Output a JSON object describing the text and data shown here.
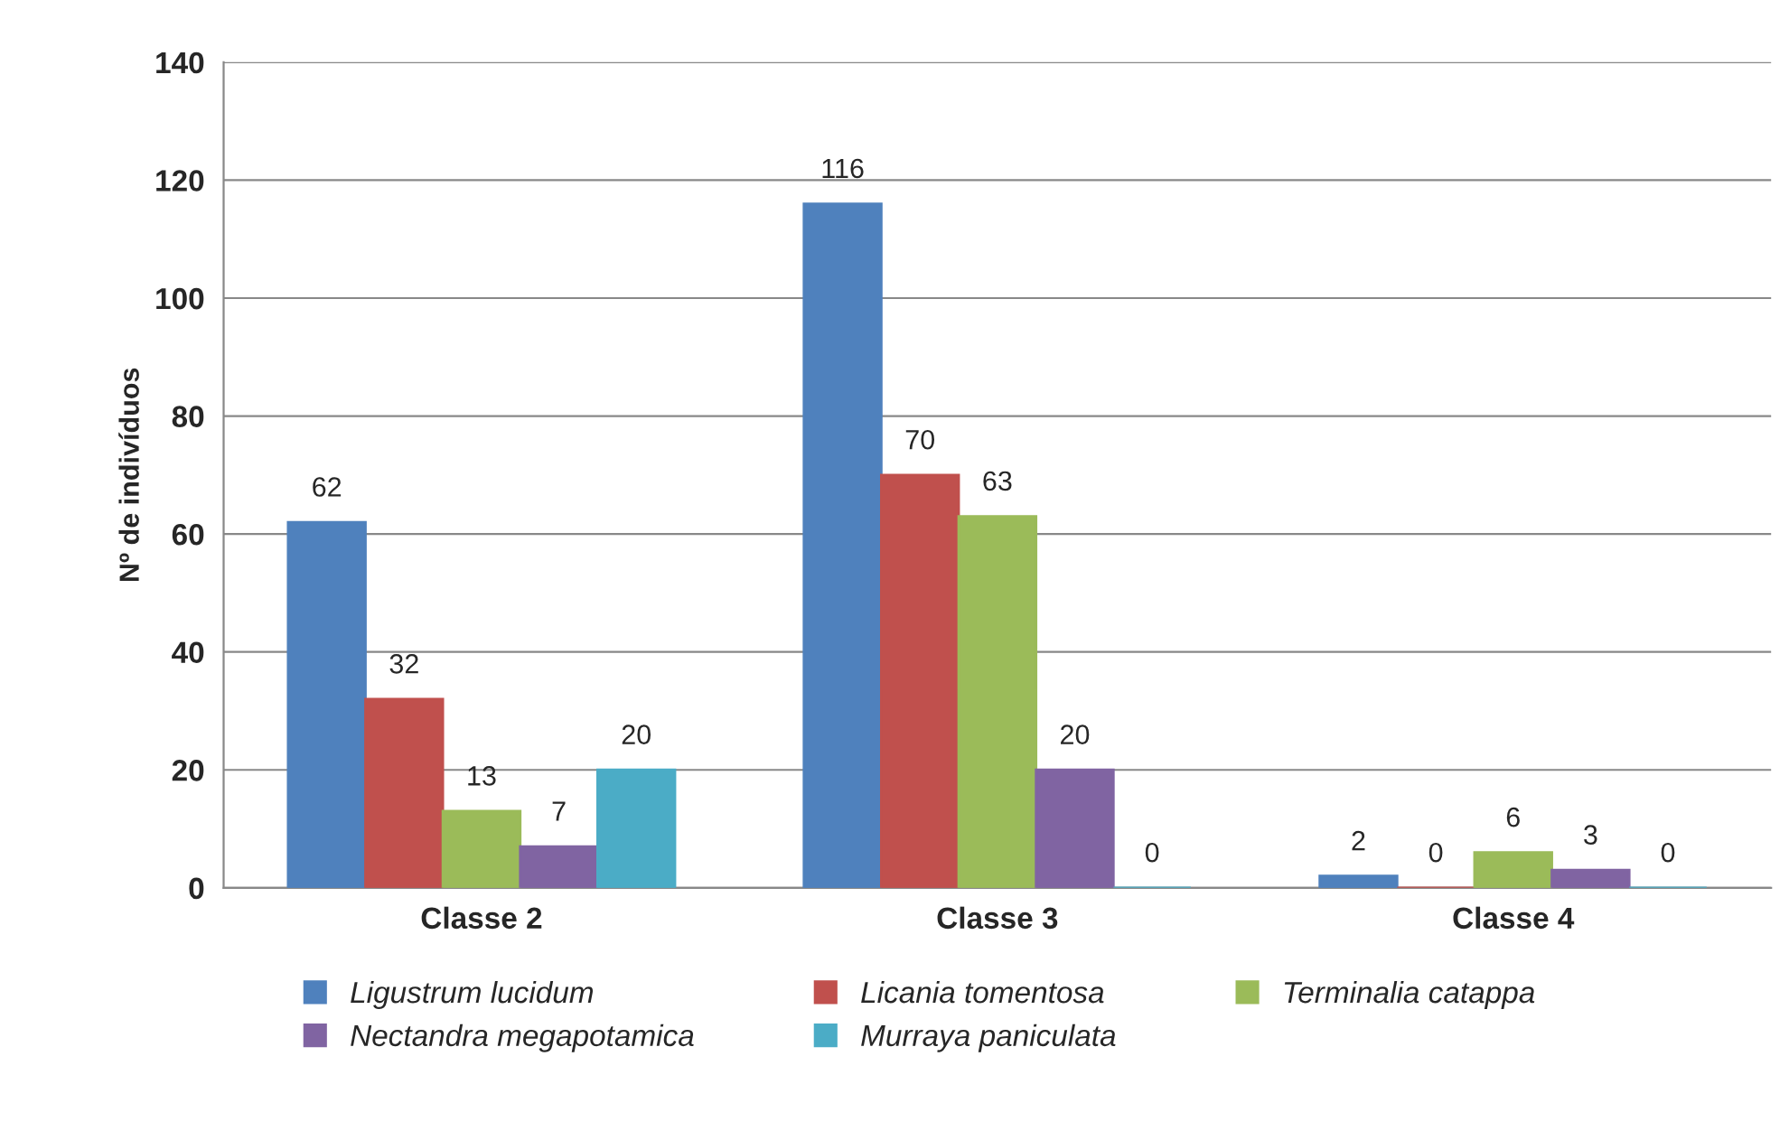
{
  "chart_data": {
    "type": "bar",
    "ylabel": "Nº de indivíduos",
    "categories": [
      "Classe 2",
      "Classe 3",
      "Classe 4"
    ],
    "series": [
      {
        "name": "Ligustrum lucidum",
        "color": "#4f81bd",
        "values": [
          62,
          116,
          2
        ]
      },
      {
        "name": "Licania tomentosa",
        "color": "#c0504d",
        "values": [
          32,
          70,
          0
        ]
      },
      {
        "name": "Terminalia catappa",
        "color": "#9bbb59",
        "values": [
          13,
          63,
          6
        ]
      },
      {
        "name": "Nectandra megapotamica",
        "color": "#8064a2",
        "values": [
          7,
          20,
          3
        ]
      },
      {
        "name": "Murraya paniculata",
        "color": "#4bacc6",
        "values": [
          20,
          0,
          0
        ]
      }
    ],
    "ylim": [
      0,
      140
    ],
    "yticks": [
      0,
      20,
      40,
      60,
      80,
      100,
      120,
      140
    ],
    "grid": "y",
    "legend": "bottom",
    "data_labels": true
  }
}
